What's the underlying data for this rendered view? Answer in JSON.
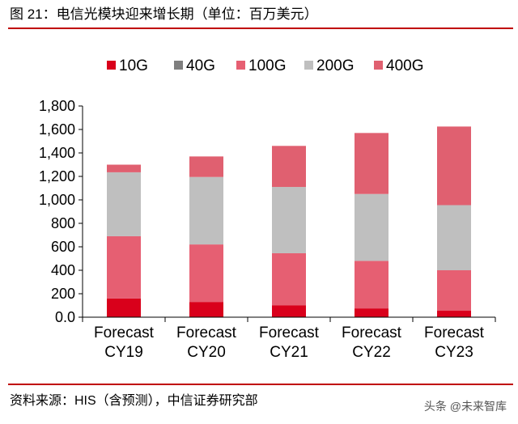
{
  "header": {
    "title": "图 21：电信光模块迎来增长期（单位：百万美元）"
  },
  "footer": {
    "source": "资料来源：HIS（含预测），中信证券研究部",
    "watermark": "头条 @未来智库"
  },
  "chart_data": {
    "type": "bar",
    "stacked": true,
    "title": "",
    "xlabel": "",
    "ylabel": "",
    "ylim": [
      0,
      1800
    ],
    "yticks": [
      "0.0",
      "200",
      "400",
      "600",
      "800",
      "1,000",
      "1,200",
      "1,400",
      "1,600",
      "1,800"
    ],
    "ytick_values": [
      0,
      200,
      400,
      600,
      800,
      1000,
      1200,
      1400,
      1600,
      1800
    ],
    "categories": [
      [
        "Forecast",
        "CY19"
      ],
      [
        "Forecast",
        "CY20"
      ],
      [
        "Forecast",
        "CY21"
      ],
      [
        "Forecast",
        "CY22"
      ],
      [
        "Forecast",
        "CY23"
      ]
    ],
    "legend_position": "top",
    "series": [
      {
        "name": "10G",
        "color": "#d9001b",
        "values": [
          160,
          130,
          100,
          75,
          55
        ]
      },
      {
        "name": "40G",
        "color": "#7f7f7f",
        "values": [
          0,
          0,
          0,
          0,
          0
        ]
      },
      {
        "name": "100G",
        "color": "#e65f72",
        "values": [
          530,
          490,
          445,
          405,
          345
        ]
      },
      {
        "name": "200G",
        "color": "#bfbfbf",
        "values": [
          545,
          575,
          565,
          570,
          555
        ]
      },
      {
        "name": "400G",
        "color": "#e06070",
        "values": [
          65,
          175,
          350,
          520,
          670
        ]
      }
    ],
    "grid": false
  }
}
